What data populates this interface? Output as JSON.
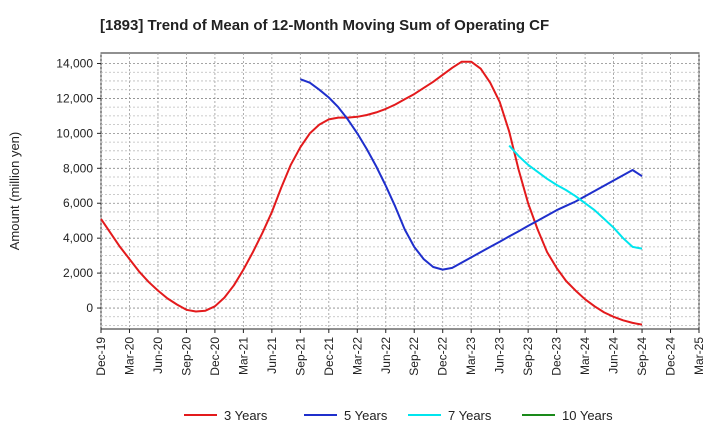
{
  "chart_data": {
    "type": "line",
    "title": "[1893]  Trend of Mean of 12-Month Moving Sum of Operating CF",
    "xlabel": "",
    "ylabel": "Amount (million yen)",
    "ylim": [
      -1200,
      14600
    ],
    "grid": true,
    "x_tick_labels": [
      "Dec-19",
      "Mar-20",
      "Jun-20",
      "Sep-20",
      "Dec-20",
      "Mar-21",
      "Jun-21",
      "Sep-21",
      "Dec-21",
      "Mar-22",
      "Jun-22",
      "Sep-22",
      "Dec-22",
      "Mar-23",
      "Jun-23",
      "Sep-23",
      "Dec-23",
      "Mar-24",
      "Jun-24",
      "Sep-24",
      "Dec-24",
      "Mar-25"
    ],
    "y_ticks": [
      0,
      2000,
      4000,
      6000,
      8000,
      10000,
      12000,
      14000
    ],
    "y_tick_labels": [
      "0",
      "2,000",
      "4,000",
      "6,000",
      "8,000",
      "10,000",
      "12,000",
      "14,000"
    ],
    "legend_position": "bottom",
    "series": [
      {
        "name": "3 Years",
        "color": "#e31a1c",
        "x": [
          0,
          1,
          2,
          3,
          4,
          5,
          6,
          7,
          8,
          9,
          10,
          11,
          12,
          13,
          14,
          15,
          16,
          17,
          18,
          19,
          20,
          21,
          22,
          23,
          24,
          25,
          26,
          27,
          28,
          29,
          30,
          31,
          32,
          33,
          34,
          35,
          36,
          37,
          38,
          39,
          40,
          41,
          42,
          43,
          44,
          45,
          46,
          47,
          48,
          49,
          50,
          51,
          52,
          53,
          54,
          55,
          56,
          57
        ],
        "values": [
          5100,
          4300,
          3500,
          2800,
          2100,
          1500,
          1000,
          550,
          200,
          -100,
          -200,
          -150,
          100,
          600,
          1300,
          2200,
          3200,
          4300,
          5500,
          6900,
          8200,
          9200,
          10000,
          10500,
          10800,
          10900,
          10900,
          10950,
          11050,
          11200,
          11400,
          11650,
          11950,
          12250,
          12600,
          12950,
          13350,
          13750,
          14100,
          14100,
          13700,
          12900,
          11800,
          10100,
          7900,
          6000,
          4500,
          3200,
          2300,
          1550,
          1000,
          500,
          100,
          -250,
          -500,
          -700,
          -850,
          -950
        ]
      },
      {
        "name": "5 Years",
        "color": "#1f2fcc",
        "x": [
          21,
          22,
          23,
          24,
          25,
          26,
          27,
          28,
          29,
          30,
          31,
          32,
          33,
          34,
          35,
          36,
          37,
          38,
          39,
          40,
          41,
          42,
          43,
          44,
          45,
          46,
          47,
          48,
          49,
          50,
          51,
          52,
          53,
          54,
          55,
          56,
          57
        ],
        "values": [
          13100,
          12900,
          12500,
          12050,
          11500,
          10800,
          10000,
          9100,
          8100,
          7000,
          5800,
          4500,
          3500,
          2800,
          2350,
          2200,
          2300,
          2600,
          2900,
          3200,
          3500,
          3800,
          4100,
          4400,
          4700,
          5000,
          5300,
          5600,
          5850,
          6100,
          6400,
          6700,
          7000,
          7300,
          7600,
          7900,
          7550
        ]
      },
      {
        "name": "7 Years",
        "color": "#00e5ee",
        "x": [
          43,
          44,
          45,
          46,
          47,
          48,
          49,
          50,
          51,
          52,
          53,
          54,
          55,
          56,
          57
        ],
        "values": [
          9300,
          8700,
          8200,
          7800,
          7400,
          7050,
          6750,
          6400,
          6000,
          5600,
          5100,
          4600,
          4000,
          3500,
          3400
        ]
      },
      {
        "name": "10 Years",
        "color": "#1a8a1a",
        "x": [],
        "values": []
      }
    ]
  }
}
